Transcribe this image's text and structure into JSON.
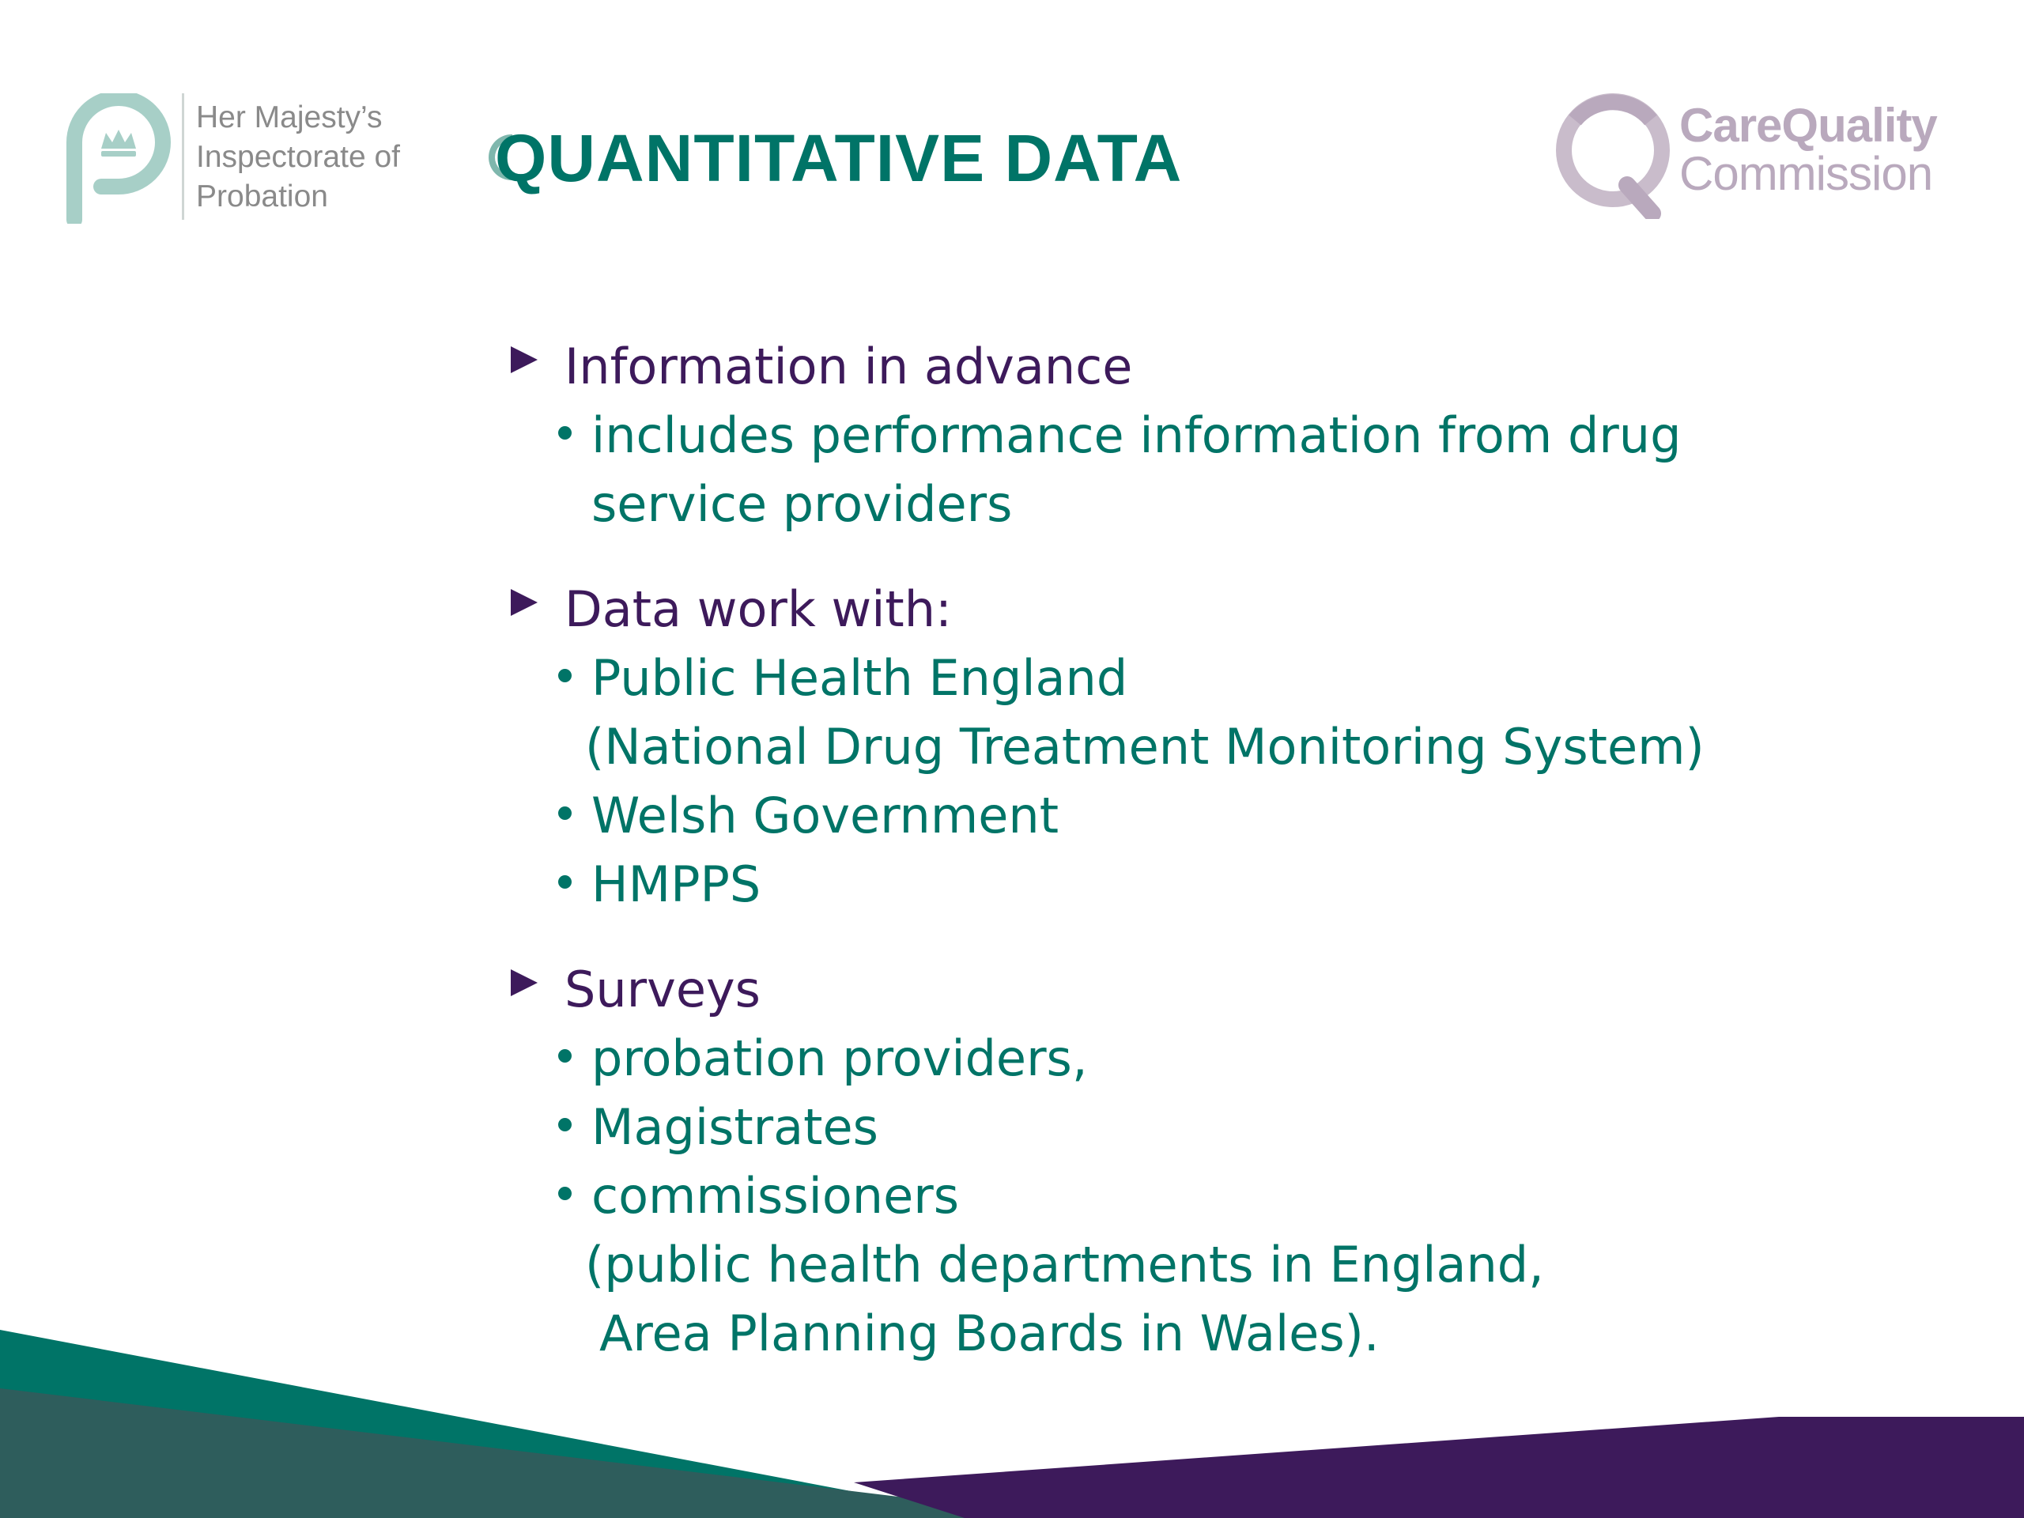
{
  "slide": {
    "title": "QUANTITATIVE DATA",
    "colors": {
      "teal": "#007467",
      "purple": "#3d1a5b",
      "dark_teal_band": "#2e5d5c",
      "logo_teal": "#a7cfc7",
      "logo_lilac": "#b9a9bd"
    }
  },
  "hmip_logo": {
    "lines": [
      "Her Majesty’s",
      "Inspectorate of",
      "Probation"
    ],
    "icon": "crown-p-icon"
  },
  "cqc_logo": {
    "line1": "CareQuality",
    "line2": "Commission",
    "icon": "q-icon"
  },
  "sections": [
    {
      "label": "Information in advance",
      "items": [
        {
          "text": "includes performance information from drug",
          "bullet": true
        },
        {
          "text": "service providers",
          "bullet": false
        }
      ]
    },
    {
      "label": "Data work with:",
      "items": [
        {
          "text": "Public Health England",
          "bullet": true
        },
        {
          "text": "(National Drug Treatment Monitoring System)",
          "bullet": false
        },
        {
          "text": "Welsh Government",
          "bullet": true
        },
        {
          "text": "HMPPS",
          "bullet": true
        }
      ]
    },
    {
      "label": "Surveys",
      "items": [
        {
          "text": "probation providers,",
          "bullet": true
        },
        {
          "text": "Magistrates",
          "bullet": true
        },
        {
          "text": "commissioners",
          "bullet": true
        },
        {
          "text": "(public health departments in England,",
          "bullet": false
        },
        {
          "text": "Area Planning Boards in Wales).",
          "bullet": false
        }
      ]
    }
  ]
}
